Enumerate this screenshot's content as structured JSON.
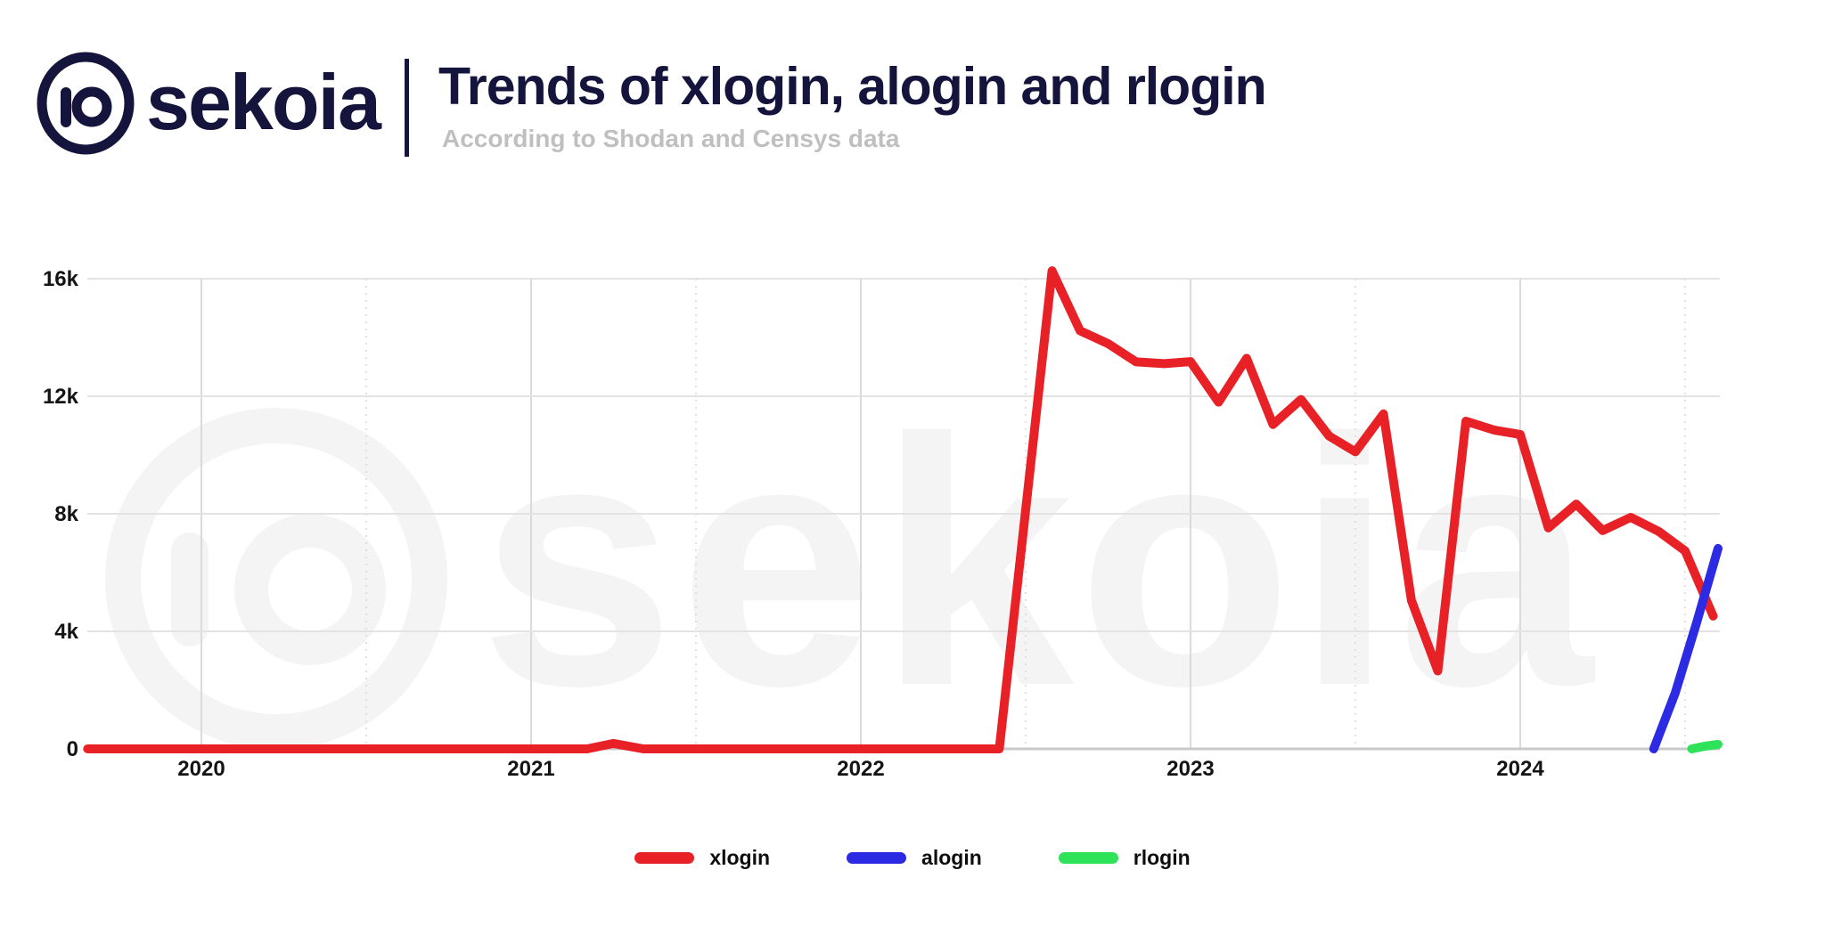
{
  "header": {
    "brand": "sekoia",
    "title": "Trends of xlogin, alogin and rlogin",
    "subtitle": "According to Shodan and Censys data",
    "brand_color": "#14143c"
  },
  "watermark": {
    "text": "sekoia"
  },
  "chart_data": {
    "type": "line",
    "title": "Trends of xlogin, alogin and rlogin",
    "subtitle": "According to Shodan and Censys data",
    "xlabel": "",
    "ylabel": "",
    "x_unit": "decimal_year",
    "xlim": [
      2019.65,
      2024.63
    ],
    "ylim": [
      0,
      16600
    ],
    "grid": true,
    "legend_position": "bottom",
    "yticks": [
      {
        "label": "16k",
        "value": 16000
      },
      {
        "label": "12k",
        "value": 12000
      },
      {
        "label": "8k",
        "value": 8000
      },
      {
        "label": "4k",
        "value": 4000
      },
      {
        "label": "0",
        "value": 0
      }
    ],
    "xticks": [
      {
        "label": "2020",
        "year": 2020
      },
      {
        "label": "2021",
        "year": 2021
      },
      {
        "label": "2022",
        "year": 2022
      },
      {
        "label": "2023",
        "year": 2023
      },
      {
        "label": "2024",
        "year": 2024
      }
    ],
    "series": [
      {
        "name": "xlogin",
        "color": "#e82127",
        "points": [
          [
            2019.655,
            0
          ],
          [
            2021.17,
            0
          ],
          [
            2021.25,
            185
          ],
          [
            2021.34,
            0
          ],
          [
            2022.42,
            0
          ],
          [
            2022.58,
            16270
          ],
          [
            2022.665,
            14230
          ],
          [
            2022.75,
            13790
          ],
          [
            2022.835,
            13170
          ],
          [
            2022.92,
            13110
          ],
          [
            2023.0,
            13180
          ],
          [
            2023.085,
            11800
          ],
          [
            2023.17,
            13290
          ],
          [
            2023.25,
            11040
          ],
          [
            2023.335,
            11890
          ],
          [
            2023.42,
            10650
          ],
          [
            2023.5,
            10110
          ],
          [
            2023.585,
            11400
          ],
          [
            2023.67,
            5050
          ],
          [
            2023.75,
            2650
          ],
          [
            2023.835,
            11150
          ],
          [
            2023.92,
            10850
          ],
          [
            2024.0,
            10700
          ],
          [
            2024.085,
            7520
          ],
          [
            2024.17,
            8330
          ],
          [
            2024.25,
            7430
          ],
          [
            2024.335,
            7880
          ],
          [
            2024.42,
            7400
          ],
          [
            2024.5,
            6740
          ],
          [
            2024.585,
            4520
          ]
        ]
      },
      {
        "name": "alogin",
        "color": "#2c2ae2",
        "points": [
          [
            2024.405,
            0
          ],
          [
            2024.47,
            1900
          ],
          [
            2024.535,
            4300
          ],
          [
            2024.6,
            6820
          ]
        ]
      },
      {
        "name": "rlogin",
        "color": "#2ee25a",
        "points": [
          [
            2024.52,
            0
          ],
          [
            2024.56,
            90
          ],
          [
            2024.6,
            150
          ]
        ]
      }
    ]
  }
}
